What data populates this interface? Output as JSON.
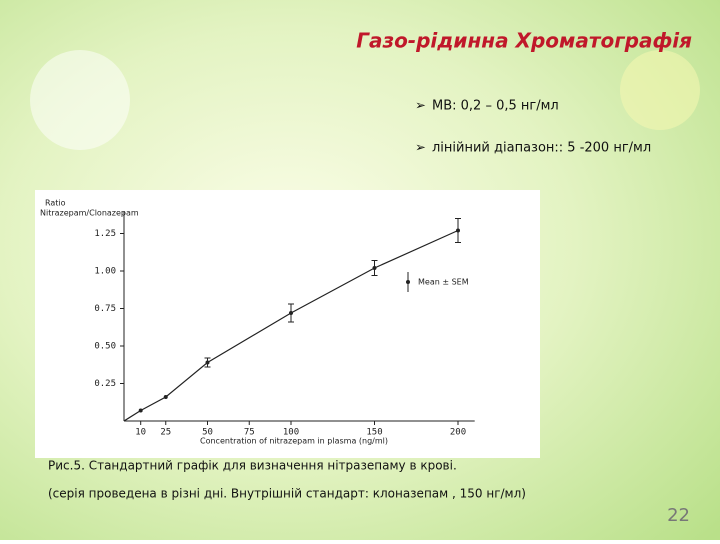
{
  "slide_title": "Газо-рідинна  Хроматографія",
  "bullets": [
    "МВ: 0,2 – 0,5 нг/мл",
    "лінійний діапазон:: 5 -200 нг/мл"
  ],
  "caption": [
    "Рис.5. Стандартний графік для визначення нітразепаму в крові.",
    "(серія проведена в різні дні. Внутрішній стандарт:  клоназепам , 150 нг/мл)"
  ],
  "page_number": "22",
  "chart_data": {
    "type": "line",
    "y_label": "Ratio",
    "y_sublabel": "Nitrazepam/Clonazepam",
    "x_label": "Concentration of nitrazepam in plasma (ng/ml)",
    "annotation": "Mean ± SEM",
    "x": [
      10,
      25,
      50,
      100,
      150,
      200
    ],
    "series": [
      {
        "name": "Nitrazepam/Clonazepam",
        "color": "#222222",
        "values": [
          0.07,
          0.16,
          0.39,
          0.72,
          1.02,
          1.27
        ],
        "errors": [
          null,
          null,
          0.03,
          0.06,
          0.05,
          0.08
        ]
      }
    ],
    "xlim": [
      0,
      210
    ],
    "ylim": [
      0,
      1.4
    ],
    "xticks": [
      10,
      25,
      50,
      75,
      100,
      150,
      200
    ],
    "yticks": [
      0.25,
      {
        "value": 0.5,
        "label": "0.50"
      },
      0.75,
      {
        "value": 1,
        "label": "1.00"
      },
      1.25
    ]
  }
}
